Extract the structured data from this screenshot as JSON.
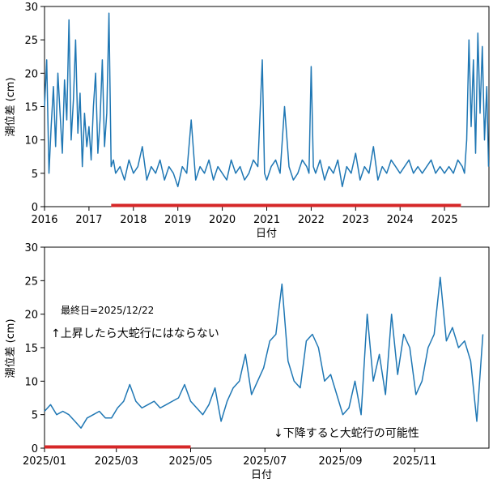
{
  "chart_data": [
    {
      "type": "line",
      "xlabel": "日付",
      "ylabel": "潮位差 (cm)",
      "xlim": [
        2016.0,
        2026.0
      ],
      "ylim": [
        0,
        30
      ],
      "yticks": [
        0,
        5,
        10,
        15,
        20,
        25,
        30
      ],
      "xtick_labels": [
        "2016",
        "2017",
        "2018",
        "2019",
        "2020",
        "2021",
        "2022",
        "2023",
        "2024",
        "2025"
      ],
      "series_color": "#1f77b4",
      "highlight_color": "#d62728",
      "highlight_range": [
        2017.5,
        2025.37
      ],
      "series": [
        {
          "x": [
            2016.0,
            2016.05,
            2016.1,
            2016.15,
            2016.2,
            2016.25,
            2016.3,
            2016.35,
            2016.4,
            2016.45,
            2016.5,
            2016.55,
            2016.6,
            2016.65,
            2016.7,
            2016.75,
            2016.8,
            2016.85,
            2016.9,
            2016.95,
            2017.0,
            2017.05,
            2017.1,
            2017.15,
            2017.2,
            2017.25,
            2017.3,
            2017.35,
            2017.4,
            2017.45,
            2017.5,
            2017.55,
            2017.6,
            2017.7,
            2017.8,
            2017.9,
            2018.0,
            2018.1,
            2018.2,
            2018.3,
            2018.4,
            2018.5,
            2018.6,
            2018.7,
            2018.8,
            2018.9,
            2019.0,
            2019.1,
            2019.2,
            2019.3,
            2019.4,
            2019.5,
            2019.6,
            2019.7,
            2019.8,
            2019.9,
            2020.0,
            2020.1,
            2020.2,
            2020.3,
            2020.4,
            2020.5,
            2020.6,
            2020.7,
            2020.8,
            2020.9,
            2020.95,
            2021.0,
            2021.1,
            2021.2,
            2021.3,
            2021.4,
            2021.5,
            2021.6,
            2021.7,
            2021.8,
            2021.9,
            2021.95,
            2022.0,
            2022.05,
            2022.1,
            2022.2,
            2022.3,
            2022.4,
            2022.5,
            2022.6,
            2022.7,
            2022.8,
            2022.9,
            2023.0,
            2023.1,
            2023.2,
            2023.3,
            2023.4,
            2023.5,
            2023.6,
            2023.7,
            2023.8,
            2023.9,
            2024.0,
            2024.1,
            2024.2,
            2024.3,
            2024.4,
            2024.5,
            2024.6,
            2024.7,
            2024.8,
            2024.9,
            2025.0,
            2025.1,
            2025.2,
            2025.3,
            2025.4,
            2025.45,
            2025.5,
            2025.55,
            2025.6,
            2025.65,
            2025.7,
            2025.75,
            2025.8,
            2025.85,
            2025.9,
            2025.95,
            2025.99
          ],
          "y": [
            15,
            22,
            5,
            12,
            18,
            9,
            20,
            14,
            8,
            19,
            13,
            28,
            10,
            16,
            25,
            11,
            17,
            6,
            14,
            9,
            12,
            7,
            15,
            20,
            8,
            13,
            22,
            9,
            14,
            29,
            6,
            7,
            5,
            6,
            4,
            7,
            5,
            6,
            9,
            4,
            6,
            5,
            7,
            4,
            6,
            5,
            3,
            6,
            5,
            13,
            4,
            6,
            5,
            7,
            4,
            6,
            5,
            4,
            7,
            5,
            6,
            4,
            5,
            7,
            6,
            22,
            5,
            4,
            6,
            7,
            5,
            15,
            6,
            4,
            5,
            7,
            6,
            5,
            21,
            6,
            5,
            7,
            4,
            6,
            5,
            7,
            3,
            6,
            5,
            8,
            4,
            6,
            5,
            9,
            4,
            6,
            5,
            7,
            6,
            5,
            6,
            7,
            5,
            6,
            5,
            6,
            7,
            5,
            6,
            5,
            6,
            5,
            7,
            6,
            5,
            10,
            25,
            12,
            22,
            8,
            26,
            14,
            24,
            10,
            18,
            6
          ]
        }
      ]
    },
    {
      "type": "line",
      "xlabel": "日付",
      "ylabel": "潮位差 (cm)",
      "xlim": [
        0,
        365
      ],
      "ylim": [
        0,
        30
      ],
      "yticks": [
        0,
        5,
        10,
        15,
        20,
        25,
        30
      ],
      "xticks": [
        0,
        59,
        120,
        181,
        243,
        304
      ],
      "xtick_labels": [
        "2025/01",
        "2025/03",
        "2025/05",
        "2025/07",
        "2025/09",
        "2025/11"
      ],
      "series_color": "#1f77b4",
      "highlight_color": "#d62728",
      "highlight_range": [
        0,
        120
      ],
      "series": [
        {
          "x": [
            0,
            5,
            10,
            15,
            20,
            25,
            30,
            35,
            40,
            45,
            50,
            55,
            60,
            65,
            70,
            75,
            80,
            85,
            90,
            95,
            100,
            105,
            110,
            115,
            120,
            125,
            130,
            135,
            140,
            145,
            150,
            155,
            160,
            165,
            170,
            175,
            180,
            185,
            190,
            195,
            200,
            205,
            210,
            215,
            220,
            225,
            230,
            235,
            240,
            245,
            250,
            255,
            260,
            265,
            270,
            275,
            280,
            285,
            290,
            295,
            300,
            305,
            310,
            315,
            320,
            325,
            330,
            335,
            340,
            345,
            350,
            355,
            360
          ],
          "y": [
            5.5,
            6.5,
            5,
            5.5,
            5,
            4,
            3,
            4.5,
            5,
            5.5,
            4.5,
            4.5,
            6,
            7,
            9.5,
            7,
            6,
            6.5,
            7,
            6,
            6.5,
            7,
            7.5,
            9.5,
            7,
            6,
            5,
            6.5,
            9,
            4,
            7,
            9,
            10,
            14,
            8,
            10,
            12,
            16,
            17,
            24.5,
            13,
            10,
            9,
            16,
            17,
            15,
            10,
            11,
            8,
            5,
            6,
            10,
            5,
            20,
            10,
            14,
            8,
            20,
            11,
            17,
            15,
            8,
            10,
            15,
            17,
            25.5,
            16,
            18,
            15,
            16,
            13,
            4,
            17
          ]
        }
      ],
      "annotations": [
        "最終日=2025/12/22",
        "↑上昇したら大蛇行にはならない",
        "↓下降すると大蛇行の可能性"
      ]
    }
  ]
}
